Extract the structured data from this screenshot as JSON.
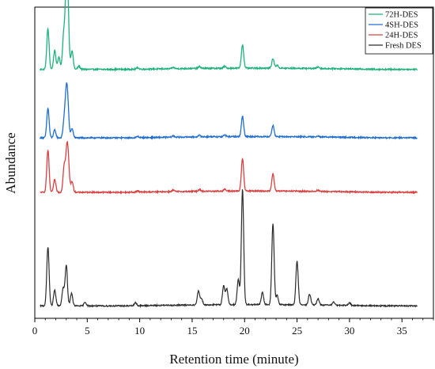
{
  "chart_data": {
    "type": "line",
    "title": "",
    "xlabel": "Retention time (minute)",
    "ylabel": "Abundance",
    "xlim": [
      0,
      38
    ],
    "xticks": [
      0,
      5,
      10,
      15,
      20,
      25,
      30,
      35
    ],
    "yticks_shown": false,
    "legend_position": "top-right",
    "grid": false,
    "layout": "stacked-offset",
    "peak_halfwidth_min": 0.11,
    "series": [
      {
        "name": "72H-DES",
        "color": "#1db37a",
        "baseline": 0.8,
        "noise": 0.004,
        "peaks": [
          [
            1.25,
            0.13
          ],
          [
            1.9,
            0.06
          ],
          [
            2.3,
            0.04
          ],
          [
            2.75,
            0.11
          ],
          [
            3.0,
            0.24
          ],
          [
            3.15,
            0.19
          ],
          [
            3.55,
            0.06
          ],
          [
            4.2,
            0.01
          ],
          [
            9.8,
            0.005
          ],
          [
            13.2,
            0.004
          ],
          [
            15.7,
            0.006
          ],
          [
            18.1,
            0.006
          ],
          [
            19.8,
            0.075
          ],
          [
            22.7,
            0.03
          ],
          [
            23.1,
            0.01
          ],
          [
            27.0,
            0.005
          ]
        ]
      },
      {
        "name": "4SH-DES",
        "color": "#1f6fd1",
        "baseline": 0.58,
        "noise": 0.004,
        "peaks": [
          [
            1.25,
            0.095
          ],
          [
            1.9,
            0.025
          ],
          [
            2.8,
            0.055
          ],
          [
            3.0,
            0.125
          ],
          [
            3.15,
            0.09
          ],
          [
            3.55,
            0.03
          ],
          [
            9.8,
            0.004
          ],
          [
            13.2,
            0.004
          ],
          [
            15.7,
            0.005
          ],
          [
            18.1,
            0.005
          ],
          [
            19.8,
            0.065
          ],
          [
            22.7,
            0.035
          ],
          [
            27.0,
            0.004
          ]
        ]
      },
      {
        "name": "24H-DES",
        "color": "#d94040",
        "baseline": 0.405,
        "noise": 0.004,
        "peaks": [
          [
            1.25,
            0.135
          ],
          [
            1.9,
            0.04
          ],
          [
            2.8,
            0.085
          ],
          [
            3.05,
            0.12
          ],
          [
            3.2,
            0.08
          ],
          [
            3.55,
            0.035
          ],
          [
            9.8,
            0.004
          ],
          [
            13.2,
            0.005
          ],
          [
            15.7,
            0.006
          ],
          [
            18.1,
            0.006
          ],
          [
            19.8,
            0.105
          ],
          [
            22.7,
            0.055
          ],
          [
            27.0,
            0.004
          ]
        ]
      },
      {
        "name": "Fresh DES",
        "color": "#2b2b2b",
        "baseline": 0.04,
        "noise": 0.004,
        "peaks": [
          [
            1.25,
            0.19
          ],
          [
            1.9,
            0.05
          ],
          [
            2.7,
            0.055
          ],
          [
            3.0,
            0.13
          ],
          [
            3.5,
            0.04
          ],
          [
            4.8,
            0.012
          ],
          [
            9.6,
            0.01
          ],
          [
            15.6,
            0.045
          ],
          [
            15.9,
            0.02
          ],
          [
            18.0,
            0.06
          ],
          [
            18.3,
            0.05
          ],
          [
            19.4,
            0.08
          ],
          [
            19.8,
            0.37
          ],
          [
            21.7,
            0.04
          ],
          [
            22.7,
            0.26
          ],
          [
            23.1,
            0.03
          ],
          [
            25.0,
            0.14
          ],
          [
            26.2,
            0.035
          ],
          [
            27.0,
            0.02
          ],
          [
            28.5,
            0.01
          ],
          [
            30.0,
            0.008
          ]
        ]
      }
    ]
  }
}
